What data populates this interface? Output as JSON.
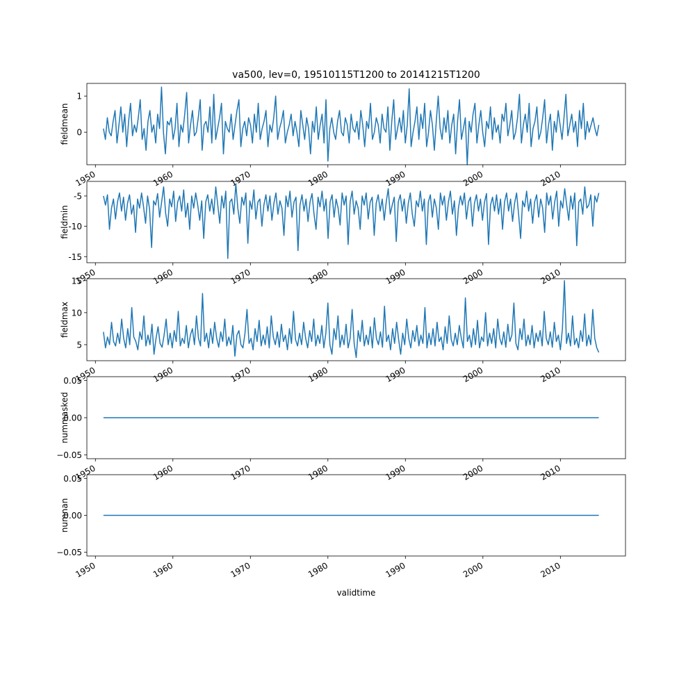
{
  "chart_data": [
    {
      "type": "line",
      "title": "va500, lev=0, 19510115T1200 to 20141215T1200",
      "ylabel": "fieldmean",
      "xlabel": "",
      "xlim": [
        1948.9,
        2018.4
      ],
      "ylim": [
        -0.9,
        1.35
      ],
      "yticks": [
        0,
        1
      ],
      "xticks": [
        1950,
        1960,
        1970,
        1980,
        1990,
        2000,
        2010
      ],
      "x_start": "1951-01",
      "x_end": "2014-12",
      "series": [
        {
          "color": "#1f77b4",
          "values": [
            0.1,
            -0.2,
            0.4,
            0.0,
            -0.1,
            0.3,
            0.6,
            -0.3,
            0.2,
            0.7,
            0.0,
            0.5,
            -0.4,
            0.3,
            0.8,
            -0.1,
            0.2,
            0.0,
            0.4,
            0.9,
            -0.2,
            0.1,
            -0.5,
            0.3,
            0.6,
            0.0,
            0.2,
            -0.3,
            0.5,
            0.1,
            1.25,
            0.0,
            -0.6,
            0.3,
            0.2,
            0.4,
            -0.2,
            0.1,
            0.8,
            -0.4,
            0.2,
            0.0,
            0.5,
            1.1,
            -0.3,
            0.2,
            0.6,
            -0.1,
            0.0,
            0.4,
            0.9,
            -0.5,
            0.2,
            0.3,
            0.0,
            0.7,
            -0.3,
            1.05,
            -0.2,
            0.1,
            0.4,
            0.8,
            -0.6,
            0.3,
            0.1,
            0.0,
            0.5,
            -0.2,
            0.2,
            0.6,
            0.9,
            -0.4,
            0.1,
            0.3,
            -0.1,
            0.4,
            0.2,
            -0.3,
            0.5,
            0.0,
            0.8,
            -0.2,
            0.1,
            0.3,
            0.6,
            -0.4,
            0.2,
            0.0,
            0.4,
            1.0,
            -0.2,
            0.1,
            0.3,
            0.6,
            -0.3,
            0.0,
            0.2,
            0.5,
            -0.1,
            0.3,
            0.0,
            -0.4,
            0.6,
            0.2,
            -0.2,
            0.4,
            0.1,
            -0.6,
            0.3,
            0.0,
            0.7,
            -0.2,
            0.2,
            0.5,
            -0.3,
            0.9,
            -0.8,
            0.1,
            0.4,
            0.0,
            -0.2,
            0.3,
            0.6,
            0.0,
            -0.1,
            0.4,
            0.2,
            -0.3,
            0.5,
            0.1,
            0.0,
            0.3,
            -0.2,
            0.6,
            0.2,
            -0.4,
            0.3,
            0.1,
            0.8,
            -0.2,
            0.0,
            0.4,
            0.2,
            -0.3,
            0.5,
            0.1,
            0.0,
            0.7,
            -0.5,
            0.3,
            0.9,
            -0.2,
            0.1,
            0.4,
            0.0,
            0.6,
            -0.3,
            0.2,
            1.2,
            -0.4,
            0.0,
            0.3,
            0.7,
            -0.2,
            0.5,
            0.1,
            0.8,
            -0.4,
            0.0,
            0.6,
            0.2,
            -0.5,
            0.3,
            1.0,
            0.1,
            -0.2,
            0.4,
            0.0,
            0.6,
            -0.3,
            0.2,
            0.5,
            -0.6,
            0.3,
            0.9,
            -0.2,
            0.1,
            0.4,
            -0.9,
            0.3,
            0.0,
            0.5,
            0.8,
            -0.3,
            0.2,
            0.6,
            0.0,
            -0.4,
            0.3,
            0.1,
            0.7,
            -0.2,
            0.4,
            0.0,
            0.2,
            -0.3,
            0.5,
            0.3,
            0.8,
            -0.1,
            0.2,
            0.6,
            -0.2,
            0.0,
            0.4,
            1.05,
            -0.3,
            0.2,
            0.5,
            0.0,
            0.8,
            -0.4,
            0.1,
            0.3,
            0.7,
            -0.2,
            0.0,
            0.4,
            0.9,
            -0.3,
            0.2,
            0.5,
            -0.5,
            0.3,
            0.0,
            0.6,
            0.2,
            -0.2,
            0.4,
            1.05,
            -0.1,
            0.2,
            0.5,
            0.0,
            0.3,
            -0.4,
            0.6,
            0.1,
            0.8,
            -0.2,
            0.3,
            0.0,
            0.2,
            0.4,
            0.1,
            -0.1,
            0.2
          ]
        }
      ]
    },
    {
      "type": "line",
      "ylabel": "fieldmin",
      "xlim": [
        1948.9,
        2018.4
      ],
      "ylim": [
        -16,
        -2.6
      ],
      "yticks": [
        -15,
        -10,
        -5
      ],
      "xticks": [
        1950,
        1960,
        1970,
        1980,
        1990,
        2000,
        2010
      ],
      "x_start": "1951-01",
      "x_end": "2014-12",
      "series": [
        {
          "color": "#1f77b4",
          "values": [
            -5.0,
            -6.5,
            -4.8,
            -10.5,
            -7.0,
            -5.5,
            -8.8,
            -6.0,
            -4.5,
            -7.5,
            -5.2,
            -9.0,
            -6.2,
            -4.8,
            -8.0,
            -6.5,
            -11.0,
            -5.5,
            -7.0,
            -4.5,
            -6.8,
            -9.5,
            -5.0,
            -7.2,
            -13.5,
            -5.8,
            -6.5,
            -4.6,
            -8.5,
            -6.0,
            -3.5,
            -7.8,
            -10.0,
            -5.5,
            -6.8,
            -4.2,
            -9.2,
            -6.0,
            -5.0,
            -7.5,
            -4.0,
            -8.5,
            -6.2,
            -10.5,
            -5.0,
            -7.0,
            -4.5,
            -6.5,
            -9.0,
            -5.8,
            -12.0,
            -6.0,
            -4.8,
            -7.5,
            -5.5,
            -8.0,
            -3.5,
            -6.5,
            -9.5,
            -5.0,
            -7.0,
            -4.2,
            -15.3,
            -6.0,
            -5.5,
            -8.0,
            -3.0,
            -7.0,
            -9.5,
            -5.2,
            -6.5,
            -4.5,
            -12.8,
            -5.8,
            -7.2,
            -4.0,
            -8.8,
            -6.0,
            -5.5,
            -10.0,
            -6.5,
            -4.8,
            -7.5,
            -5.0,
            -9.0,
            -6.2,
            -4.5,
            -8.0,
            -5.8,
            -7.0,
            -11.5,
            -5.0,
            -6.8,
            -4.2,
            -8.5,
            -6.0,
            -5.2,
            -14.0,
            -6.5,
            -4.8,
            -7.5,
            -5.5,
            -9.2,
            -6.0,
            -4.6,
            -8.0,
            -10.5,
            -5.2,
            -6.8,
            -4.2,
            -7.5,
            -5.5,
            -12.0,
            -6.0,
            -4.8,
            -8.5,
            -5.5,
            -7.0,
            -9.8,
            -4.5,
            -6.5,
            -5.0,
            -13.0,
            -6.0,
            -4.2,
            -8.0,
            -5.8,
            -7.0,
            -10.5,
            -5.0,
            -6.5,
            -4.5,
            -8.8,
            -6.0,
            -5.2,
            -11.5,
            -6.2,
            -4.8,
            -7.5,
            -5.5,
            -9.0,
            -6.0,
            -3.8,
            -8.0,
            -6.5,
            -5.2,
            -12.5,
            -6.0,
            -4.8,
            -7.5,
            -5.5,
            -9.5,
            -6.2,
            -4.5,
            -8.0,
            -10.0,
            -5.8,
            -6.8,
            -4.2,
            -7.5,
            -5.5,
            -13.0,
            -6.0,
            -4.8,
            -8.5,
            -5.5,
            -7.0,
            -10.5,
            -4.5,
            -6.5,
            -5.0,
            -9.0,
            -6.0,
            -4.2,
            -8.0,
            -5.8,
            -11.5,
            -7.0,
            -5.0,
            -6.5,
            -4.5,
            -8.8,
            -6.0,
            -5.2,
            -10.0,
            -6.2,
            -4.8,
            -7.5,
            -5.5,
            -9.0,
            -6.0,
            -4.6,
            -13.0,
            -6.5,
            -5.2,
            -7.5,
            -4.8,
            -8.0,
            -5.5,
            -10.5,
            -6.0,
            -4.5,
            -7.5,
            -5.5,
            -9.2,
            -6.2,
            -4.5,
            -8.0,
            -12.0,
            -5.8,
            -6.8,
            -4.2,
            -7.5,
            -5.5,
            -9.5,
            -6.0,
            -4.8,
            -8.5,
            -5.5,
            -7.0,
            -11.0,
            -4.5,
            -6.5,
            -5.0,
            -8.8,
            -6.0,
            -4.2,
            -10.0,
            -5.8,
            -7.0,
            -3.8,
            -6.5,
            -9.0,
            -5.0,
            -7.2,
            -4.5,
            -13.2,
            -6.0,
            -5.5,
            -8.0,
            -3.5,
            -7.0,
            -6.5,
            -4.8,
            -10.0,
            -5.0,
            -6.0,
            -4.5
          ]
        }
      ]
    },
    {
      "type": "line",
      "ylabel": "fieldmax",
      "xlim": [
        1948.9,
        2018.4
      ],
      "ylim": [
        2.5,
        15.3
      ],
      "yticks": [
        5,
        10,
        15
      ],
      "xticks": [
        1950,
        1960,
        1970,
        1980,
        1990,
        2000,
        2010
      ],
      "x_start": "1951-01",
      "x_end": "2014-12",
      "series": [
        {
          "color": "#1f77b4",
          "values": [
            7.0,
            4.5,
            6.2,
            5.0,
            8.5,
            5.5,
            4.8,
            6.8,
            5.2,
            9.0,
            6.0,
            4.5,
            7.5,
            5.0,
            10.8,
            6.2,
            5.5,
            4.2,
            7.0,
            5.8,
            9.5,
            4.8,
            6.5,
            5.0,
            8.2,
            3.5,
            6.0,
            7.8,
            5.2,
            4.6,
            6.5,
            9.0,
            5.0,
            6.8,
            4.5,
            7.2,
            5.5,
            10.2,
            4.8,
            6.0,
            5.2,
            8.0,
            4.5,
            6.5,
            7.5,
            5.0,
            9.5,
            6.0,
            4.8,
            13.0,
            5.5,
            6.8,
            4.5,
            7.5,
            5.2,
            8.5,
            6.0,
            4.6,
            7.0,
            5.5,
            9.0,
            4.8,
            6.2,
            5.0,
            8.0,
            3.2,
            6.5,
            7.2,
            5.0,
            4.5,
            6.8,
            10.5,
            5.2,
            6.0,
            4.2,
            7.5,
            5.5,
            8.8,
            4.8,
            6.5,
            5.0,
            7.8,
            4.5,
            9.5,
            6.2,
            5.0,
            7.0,
            4.6,
            8.2,
            5.5,
            6.5,
            4.2,
            7.5,
            5.2,
            10.2,
            5.8,
            4.8,
            6.8,
            5.0,
            8.5,
            6.0,
            4.5,
            7.2,
            5.5,
            9.0,
            4.8,
            6.5,
            5.2,
            8.0,
            4.5,
            6.8,
            11.5,
            5.0,
            3.5,
            7.5,
            5.8,
            9.5,
            4.6,
            6.5,
            5.0,
            8.2,
            4.5,
            6.0,
            10.5,
            5.2,
            3.0,
            7.2,
            5.5,
            8.8,
            4.8,
            6.5,
            5.0,
            7.8,
            4.5,
            9.2,
            6.0,
            5.0,
            7.0,
            4.6,
            11.0,
            5.5,
            6.5,
            4.2,
            7.5,
            5.2,
            8.5,
            5.8,
            3.5,
            6.8,
            5.0,
            9.0,
            6.0,
            4.5,
            7.2,
            5.5,
            8.0,
            4.8,
            6.5,
            5.2,
            10.8,
            4.5,
            6.8,
            5.0,
            7.5,
            4.8,
            8.5,
            5.5,
            6.2,
            4.2,
            7.8,
            5.2,
            9.5,
            5.8,
            4.8,
            6.8,
            5.0,
            8.0,
            6.0,
            4.5,
            12.3,
            5.5,
            6.5,
            4.6,
            7.5,
            5.0,
            8.8,
            4.5,
            6.2,
            5.5,
            10.0,
            4.8,
            6.8,
            5.2,
            7.5,
            4.5,
            9.0,
            6.0,
            5.0,
            7.0,
            4.6,
            8.2,
            5.5,
            6.5,
            11.5,
            5.2,
            4.2,
            7.5,
            5.8,
            9.0,
            4.8,
            6.5,
            5.0,
            8.0,
            4.5,
            6.8,
            5.5,
            7.2,
            4.8,
            10.2,
            6.0,
            5.0,
            7.0,
            4.6,
            8.5,
            5.5,
            6.5,
            4.2,
            7.5,
            15.0,
            5.2,
            6.8,
            4.8,
            9.5,
            5.0,
            6.0,
            4.5,
            7.2,
            5.5,
            9.8,
            4.8,
            6.5,
            5.0,
            10.5,
            6.0,
            4.5,
            3.8
          ]
        }
      ]
    },
    {
      "type": "line",
      "ylabel": "nummasked",
      "xlim": [
        1948.9,
        2018.4
      ],
      "ylim": [
        -0.055,
        0.055
      ],
      "yticks": [
        -0.05,
        0,
        0.05
      ],
      "ytick_labels": [
        "−0.05",
        "0.00",
        "0.05"
      ],
      "xticks": [
        1950,
        1960,
        1970,
        1980,
        1990,
        2000,
        2010
      ],
      "x_start": "1951-01",
      "x_end": "2014-12",
      "series": [
        {
          "color": "#1f77b4",
          "values": [
            0,
            0
          ]
        }
      ]
    },
    {
      "type": "line",
      "ylabel": "numnan",
      "xlabel": "validtime",
      "xlim": [
        1948.9,
        2018.4
      ],
      "ylim": [
        -0.055,
        0.055
      ],
      "yticks": [
        -0.05,
        0,
        0.05
      ],
      "ytick_labels": [
        "−0.05",
        "0.00",
        "0.05"
      ],
      "xticks": [
        1950,
        1960,
        1970,
        1980,
        1990,
        2000,
        2010
      ],
      "x_start": "1951-01",
      "x_end": "2014-12",
      "series": [
        {
          "color": "#1f77b4",
          "values": [
            0,
            0
          ]
        }
      ]
    }
  ]
}
